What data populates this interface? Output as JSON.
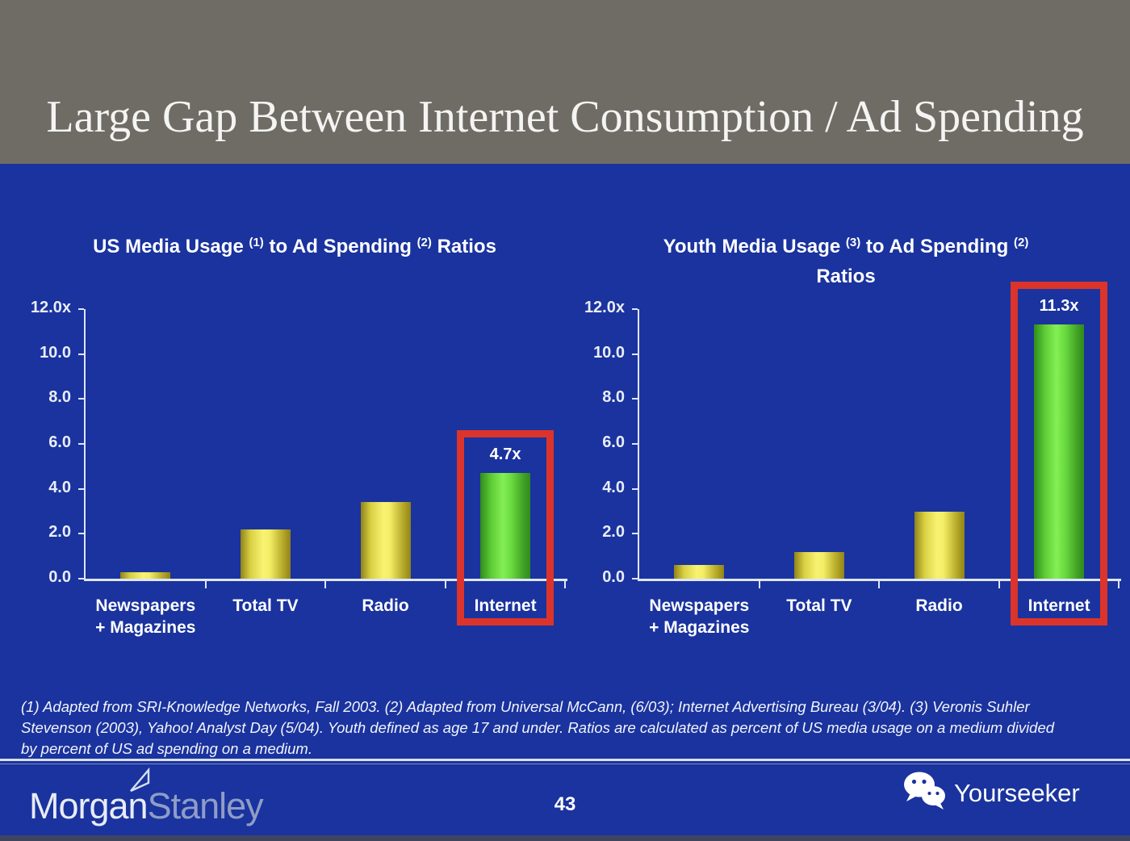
{
  "slide": {
    "title": "Large Gap Between Internet Consumption / Ad Spending",
    "page_number": "43",
    "footnote": "(1) Adapted from SRI-Knowledge Networks, Fall 2003.  (2) Adapted from Universal McCann, (6/03); Internet Advertising Bureau (3/04). (3) Veronis Suhler\nStevenson (2003), Yahoo! Analyst Day (5/04).  Youth defined as age 17 and under.  Ratios are calculated as percent of US media usage on a medium divided\nby percent of US ad spending on a medium."
  },
  "branding": {
    "logo_left_part1": "Morgan",
    "logo_left_part2": "Stanley",
    "logo_right_text": "Yourseeker",
    "logo_right_icon": "wechat-icon"
  },
  "colors": {
    "background_blue": "#1a339e",
    "header_gray": "#6f6c66",
    "bar_yellow": "#f2ec5f",
    "bar_green": "#6ee24a",
    "highlight_red": "#dc342b",
    "axis_white": "#dfe6fa"
  },
  "chart_data": [
    {
      "type": "bar",
      "title_lines": [
        [
          {
            "text": "US Media Usage "
          },
          {
            "sup": "(1)"
          },
          {
            "text": " to Ad Spending "
          },
          {
            "sup": "(2)"
          },
          {
            "text": " Ratios"
          }
        ]
      ],
      "categories": [
        "Newspapers\n+ Magazines",
        "Total TV",
        "Radio",
        "Internet"
      ],
      "values": [
        0.3,
        2.2,
        3.4,
        4.7
      ],
      "highlight_index": 3,
      "highlight_value_label": "4.7x",
      "ytick_labels": [
        "12.0x",
        "10.0",
        "8.0",
        "6.0",
        "4.0",
        "2.0",
        "0.0"
      ],
      "ytick_values": [
        12,
        10,
        8,
        6,
        4,
        2,
        0
      ],
      "ylim": [
        0,
        12
      ],
      "grid": false,
      "legend": false,
      "xlabel": "",
      "ylabel": ""
    },
    {
      "type": "bar",
      "title_lines": [
        [
          {
            "text": "Youth Media Usage "
          },
          {
            "sup": "(3)"
          },
          {
            "text": " to Ad Spending "
          },
          {
            "sup": "(2)"
          }
        ],
        [
          {
            "text": "Ratios"
          }
        ]
      ],
      "categories": [
        "Newspapers\n+ Magazines",
        "Total TV",
        "Radio",
        "Internet"
      ],
      "values": [
        0.6,
        1.2,
        3.0,
        11.3
      ],
      "highlight_index": 3,
      "highlight_value_label": "11.3x",
      "ytick_labels": [
        "12.0x",
        "10.0",
        "8.0",
        "6.0",
        "4.0",
        "2.0",
        "0.0"
      ],
      "ytick_values": [
        12,
        10,
        8,
        6,
        4,
        2,
        0
      ],
      "ylim": [
        0,
        12
      ],
      "grid": false,
      "legend": false,
      "xlabel": "",
      "ylabel": ""
    }
  ]
}
